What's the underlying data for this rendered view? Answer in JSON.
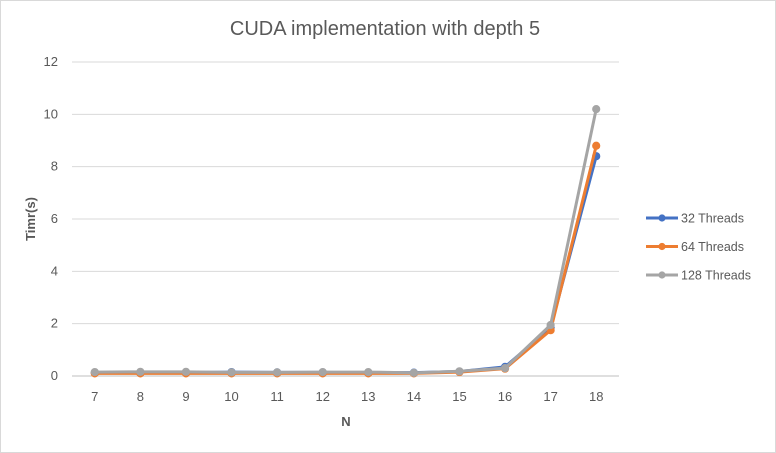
{
  "chart_data": {
    "type": "line",
    "title": "CUDA implementation with depth 5",
    "xlabel": "N",
    "ylabel": "Timr(s)",
    "categories": [
      "7",
      "8",
      "9",
      "10",
      "11",
      "12",
      "13",
      "14",
      "15",
      "16",
      "17",
      "18"
    ],
    "ylim": [
      0,
      12
    ],
    "yticks": [
      "0",
      "2",
      "4",
      "6",
      "8",
      "10",
      "12"
    ],
    "grid": true,
    "legend_position": "right",
    "series": [
      {
        "name": "32 Threads",
        "color": "#4472c4",
        "values": [
          0.12,
          0.12,
          0.13,
          0.15,
          0.14,
          0.14,
          0.12,
          0.13,
          0.17,
          0.35,
          1.85,
          8.4
        ]
      },
      {
        "name": "64 Threads",
        "color": "#ed7d31",
        "values": [
          0.1,
          0.1,
          0.1,
          0.1,
          0.1,
          0.1,
          0.1,
          0.1,
          0.15,
          0.28,
          1.75,
          8.8
        ]
      },
      {
        "name": "128 Threads",
        "color": "#a5a5a5",
        "values": [
          0.15,
          0.16,
          0.16,
          0.14,
          0.14,
          0.15,
          0.15,
          0.12,
          0.18,
          0.3,
          1.95,
          10.2
        ]
      }
    ]
  }
}
